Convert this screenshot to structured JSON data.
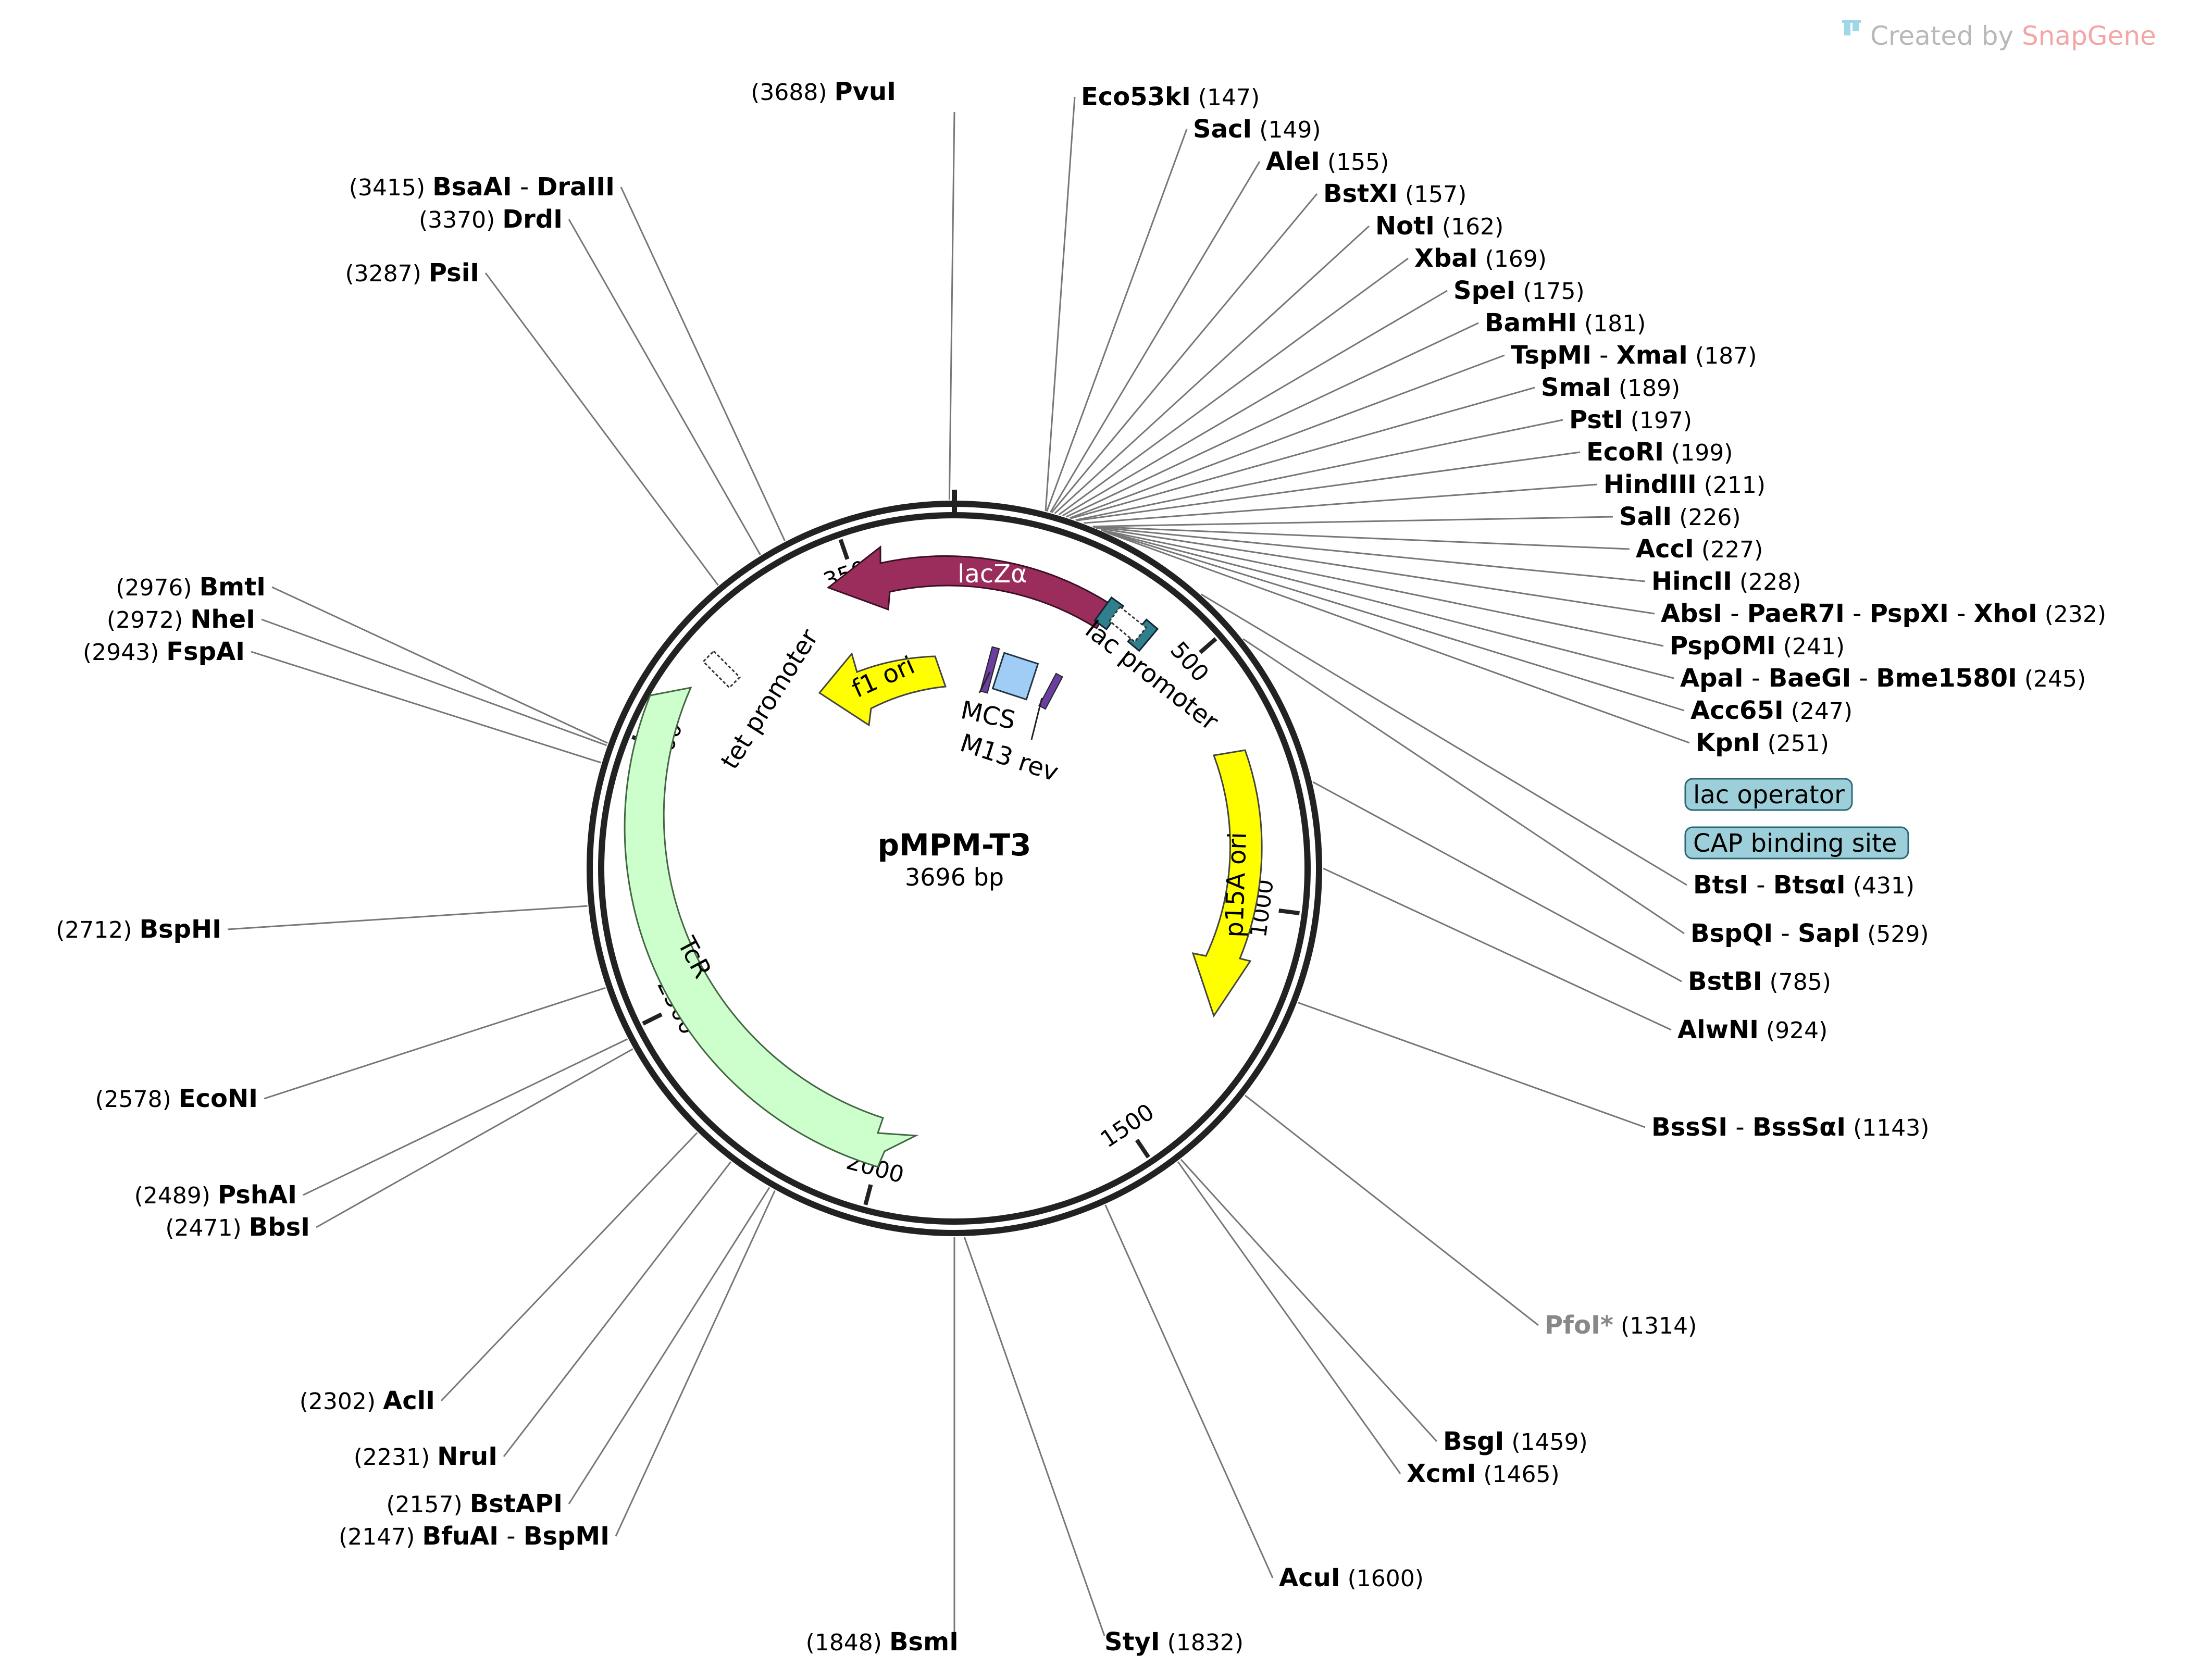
{
  "brand": {
    "prefix": "Created by ",
    "name": "SnapGene",
    "prefix_color": "#b8b8b8",
    "name_color": "#f2a6a6"
  },
  "plasmid": {
    "name": "pMPM-T3",
    "size_label": "3696 bp",
    "length_bp": 3696
  },
  "ticks": [
    {
      "bp": 500,
      "label": "500"
    },
    {
      "bp": 1000,
      "label": "1000"
    },
    {
      "bp": 1500,
      "label": "1500"
    },
    {
      "bp": 2000,
      "label": "2000"
    },
    {
      "bp": 2500,
      "label": "2500"
    },
    {
      "bp": 3000,
      "label": "3000"
    },
    {
      "bp": 3500,
      "label": "3500"
    }
  ],
  "features": [
    {
      "name": "lacZα",
      "type": "cds",
      "color": "#9b2d5c"
    },
    {
      "name": "lac promoter",
      "type": "promoter",
      "color": "#ffffff"
    },
    {
      "name": "MCS",
      "type": "mcs",
      "color": "#9fcdf5"
    },
    {
      "name": "M13 rev",
      "type": "primer",
      "color": "#6a3fa0"
    },
    {
      "name": "f1 ori",
      "type": "origin",
      "color": "#ffff00"
    },
    {
      "name": "tet promoter",
      "type": "promoter",
      "color": "#ffffff"
    },
    {
      "name": "TcR",
      "type": "cds",
      "color": "#ccffcc"
    },
    {
      "name": "p15A ori",
      "type": "origin",
      "color": "#ffff00"
    },
    {
      "name": "lac operator",
      "type": "protein_bind",
      "color": "#9ccfd9"
    },
    {
      "name": "CAP binding site",
      "type": "protein_bind",
      "color": "#9ccfd9"
    }
  ],
  "sites": [
    {
      "names": [
        "PvuI"
      ],
      "pos": "(3688)"
    },
    {
      "names": [
        "BsaAI",
        "DraIII"
      ],
      "pos": "(3415)"
    },
    {
      "names": [
        "DrdI"
      ],
      "pos": "(3370)"
    },
    {
      "names": [
        "PsiI"
      ],
      "pos": "(3287)"
    },
    {
      "names": [
        "BmtI"
      ],
      "pos": "(2976)"
    },
    {
      "names": [
        "NheI"
      ],
      "pos": "(2972)"
    },
    {
      "names": [
        "FspAI"
      ],
      "pos": "(2943)"
    },
    {
      "names": [
        "BspHI"
      ],
      "pos": "(2712)"
    },
    {
      "names": [
        "EcoNI"
      ],
      "pos": "(2578)"
    },
    {
      "names": [
        "PshAI"
      ],
      "pos": "(2489)"
    },
    {
      "names": [
        "BbsI"
      ],
      "pos": "(2471)"
    },
    {
      "names": [
        "AclI"
      ],
      "pos": "(2302)"
    },
    {
      "names": [
        "NruI"
      ],
      "pos": "(2231)"
    },
    {
      "names": [
        "BstAPI"
      ],
      "pos": "(2157)"
    },
    {
      "names": [
        "BfuAI",
        "BspMI"
      ],
      "pos": "(2147)"
    },
    {
      "names": [
        "BsmI"
      ],
      "pos": "(1848)"
    },
    {
      "names": [
        "StyI"
      ],
      "pos": "(1832)"
    },
    {
      "names": [
        "AcuI"
      ],
      "pos": "(1600)"
    },
    {
      "names": [
        "BsgI"
      ],
      "pos": "(1459)"
    },
    {
      "names": [
        "XcmI"
      ],
      "pos": "(1465)"
    },
    {
      "names": [
        "PfoI*"
      ],
      "pos": "(1314)",
      "dim": true
    },
    {
      "names": [
        "BssSI",
        "BssSαI"
      ],
      "pos": "(1143)"
    },
    {
      "names": [
        "AlwNI"
      ],
      "pos": "(924)"
    },
    {
      "names": [
        "BstBI"
      ],
      "pos": "(785)"
    },
    {
      "names": [
        "BspQI",
        "SapI"
      ],
      "pos": "(529)"
    },
    {
      "names": [
        "BtsI",
        "BtsαI"
      ],
      "pos": "(431)"
    },
    {
      "names": [
        "KpnI"
      ],
      "pos": "(251)"
    },
    {
      "names": [
        "Acc65I"
      ],
      "pos": "(247)"
    },
    {
      "names": [
        "ApaI",
        "BaeGI",
        "Bme1580I"
      ],
      "pos": "(245)"
    },
    {
      "names": [
        "PspOMI"
      ],
      "pos": "(241)"
    },
    {
      "names": [
        "AbsI",
        "PaeR7I",
        "PspXI",
        "XhoI"
      ],
      "pos": "(232)"
    },
    {
      "names": [
        "HincII"
      ],
      "pos": "(228)"
    },
    {
      "names": [
        "AccI"
      ],
      "pos": "(227)"
    },
    {
      "names": [
        "SalI"
      ],
      "pos": "(226)"
    },
    {
      "names": [
        "HindIII"
      ],
      "pos": "(211)"
    },
    {
      "names": [
        "EcoRI"
      ],
      "pos": "(199)"
    },
    {
      "names": [
        "PstI"
      ],
      "pos": "(197)"
    },
    {
      "names": [
        "SmaI"
      ],
      "pos": "(189)"
    },
    {
      "names": [
        "TspMI",
        "XmaI"
      ],
      "pos": "(187)"
    },
    {
      "names": [
        "BamHI"
      ],
      "pos": "(181)"
    },
    {
      "names": [
        "SpeI"
      ],
      "pos": "(175)"
    },
    {
      "names": [
        "XbaI"
      ],
      "pos": "(169)"
    },
    {
      "names": [
        "NotI"
      ],
      "pos": "(162)"
    },
    {
      "names": [
        "BstXI"
      ],
      "pos": "(157)"
    },
    {
      "names": [
        "AleI"
      ],
      "pos": "(155)"
    },
    {
      "names": [
        "SacI"
      ],
      "pos": "(149)"
    },
    {
      "names": [
        "Eco53kI"
      ],
      "pos": "(147)"
    }
  ]
}
